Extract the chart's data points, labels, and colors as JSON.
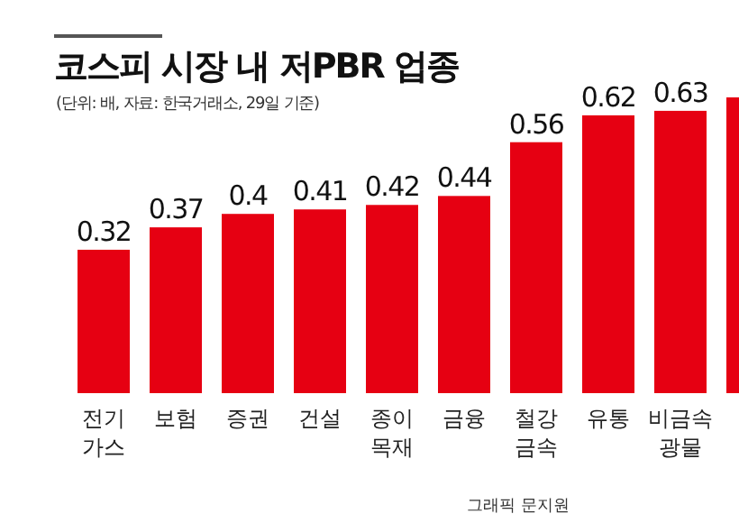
{
  "chart_data": {
    "type": "bar",
    "title": "코스피 시장 내 저PBR 업종",
    "subtitle": "(단위: 배, 자료: 한국거래소, 29일 기준)",
    "categories": [
      "전기 가스",
      "보험",
      "증권",
      "건설",
      "종이 목재",
      "금융",
      "철강 금속",
      "유통",
      "비금속 광물",
      null
    ],
    "values": [
      0.32,
      0.37,
      0.4,
      0.41,
      0.42,
      0.44,
      0.56,
      0.62,
      0.63,
      0.66
    ],
    "value_labels": [
      "0.32",
      "0.37",
      "0.4",
      "0.41",
      "0.42",
      "0.44",
      "0.56",
      "0.62",
      "0.63",
      null
    ],
    "color": "#e60012",
    "annotations": [
      "그래픽 문지원"
    ]
  }
}
